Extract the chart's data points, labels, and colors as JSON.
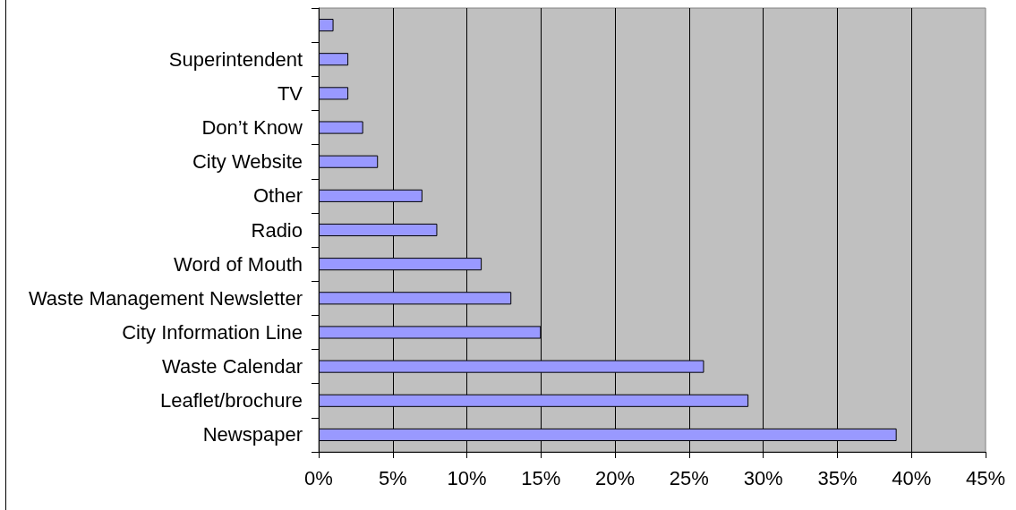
{
  "chart_data": {
    "type": "bar",
    "orientation": "horizontal",
    "categories": [
      null,
      "Superintendent",
      "TV",
      "Don’t Know",
      "City Website",
      "Other",
      "Radio",
      "Word of Mouth",
      "Waste Management Newsletter",
      "City Information Line",
      "Waste Calendar",
      "Leaflet/brochure",
      "Newspaper"
    ],
    "values": [
      1,
      2,
      2,
      3,
      4,
      7,
      8,
      11,
      13,
      15,
      26,
      29,
      39
    ],
    "color": "#9999ff",
    "xlim": [
      0,
      45
    ],
    "xticks": [
      {
        "value": 0,
        "label": "0%"
      },
      {
        "value": 5,
        "label": "5%"
      },
      {
        "value": 10,
        "label": "10%"
      },
      {
        "value": 15,
        "label": "15%"
      },
      {
        "value": 20,
        "label": "20%"
      },
      {
        "value": 25,
        "label": "25%"
      },
      {
        "value": 30,
        "label": "30%"
      },
      {
        "value": 35,
        "label": "35%"
      },
      {
        "value": 40,
        "label": "40%"
      },
      {
        "value": 45,
        "label": "45%"
      }
    ],
    "grid": "x"
  }
}
